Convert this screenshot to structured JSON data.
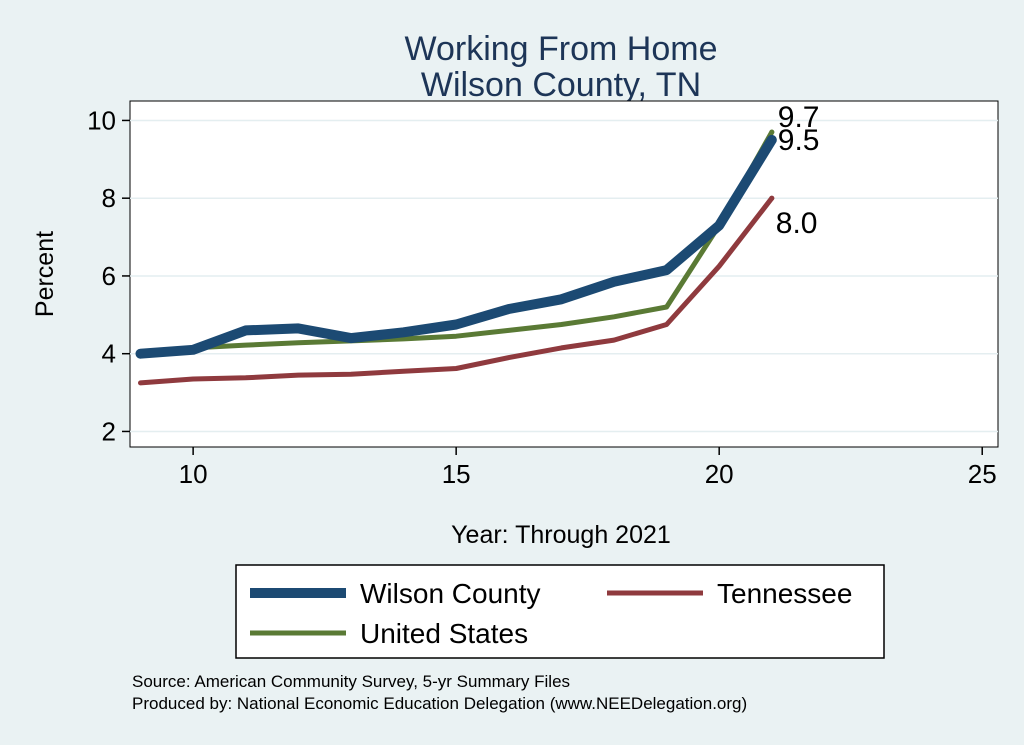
{
  "chart_data": {
    "type": "line",
    "title": [
      "Working From Home",
      "Wilson County, TN"
    ],
    "xlabel": "Year: Through 2021",
    "ylabel": "Percent",
    "xlim": [
      8.8,
      25.3
    ],
    "ylim": [
      1.6,
      10.5
    ],
    "xticks": [
      10,
      15,
      20,
      25
    ],
    "yticks": [
      2,
      4,
      6,
      8,
      10
    ],
    "grid": true,
    "legend": "bottom",
    "series": [
      {
        "name": "Wilson County",
        "color": "#1c4a73",
        "x": [
          9,
          10,
          11,
          12,
          13,
          14,
          15,
          16,
          17,
          18,
          19,
          20,
          21
        ],
        "y": [
          4.0,
          4.1,
          4.6,
          4.65,
          4.4,
          4.55,
          4.75,
          5.15,
          5.4,
          5.85,
          6.15,
          7.3,
          9.5
        ],
        "end_label": "9.5"
      },
      {
        "name": "Tennessee",
        "color": "#8f3a3e",
        "x": [
          9,
          10,
          11,
          12,
          13,
          14,
          15,
          16,
          17,
          18,
          19,
          20,
          21
        ],
        "y": [
          3.25,
          3.35,
          3.38,
          3.45,
          3.47,
          3.55,
          3.62,
          3.9,
          4.15,
          4.35,
          4.75,
          6.25,
          8.0
        ],
        "end_label": "8.0"
      },
      {
        "name": "United States",
        "color": "#5a7a35",
        "x": [
          9,
          10,
          11,
          12,
          13,
          14,
          15,
          16,
          17,
          18,
          19,
          20,
          21
        ],
        "y": [
          4.05,
          4.15,
          4.22,
          4.28,
          4.33,
          4.38,
          4.45,
          4.6,
          4.75,
          4.95,
          5.2,
          7.3,
          9.7
        ],
        "end_label": "9.7"
      }
    ]
  },
  "notes": {
    "source": "Source: American Community Survey, 5-yr Summary Files",
    "produced": "Produced by: National Economic Education Delegation (www.NEEDelegation.org)"
  }
}
